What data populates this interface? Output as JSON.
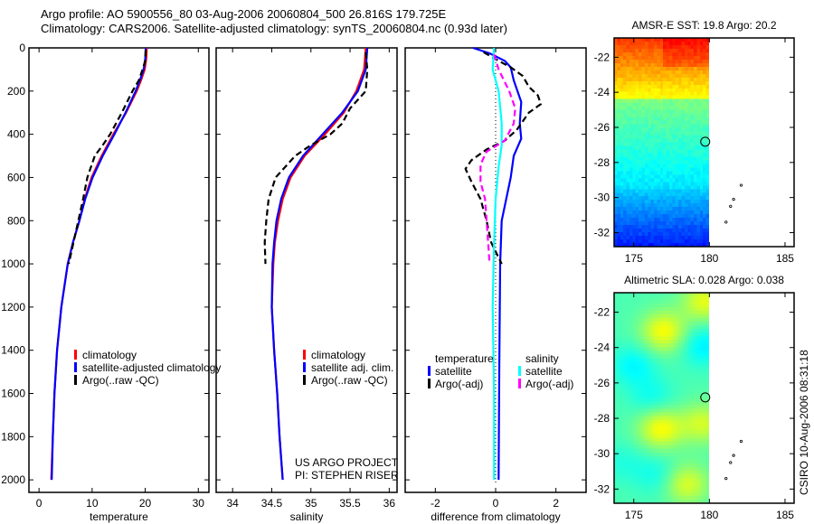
{
  "title": {
    "line1": "Argo profile: AO 5900556_80 03-Aug-2006 20060804_500 26.816S 179.725E",
    "line2": "Climatology: CARS2006. Satellite-adjusted climatology: synTS_20060804.nc (0.93d later)"
  },
  "credits": {
    "project": "US ARGO PROJECT",
    "pi": "PI: STEPHEN RISER",
    "stamp": "CSIRO 10-Aug-2006 08:31:18"
  },
  "colors": {
    "red": "#ff0000",
    "blue": "#0000ff",
    "black": "#000000",
    "cyan": "#00ffff",
    "magenta": "#ff00ff"
  },
  "chart_data": [
    {
      "type": "line",
      "xlabel": "temperature",
      "ylabel": "",
      "xticks": [
        0,
        10,
        20,
        30
      ],
      "yticks": [
        0,
        200,
        400,
        600,
        800,
        1000,
        1200,
        1400,
        1600,
        1800,
        2000
      ],
      "xlim": [
        -1.9,
        32
      ],
      "ylim": [
        2058,
        0
      ],
      "legend": [
        "climatology",
        "satellite-adjusted climatology",
        "Argo(..raw -QC)"
      ],
      "series": [
        {
          "name": "climatology",
          "color": "#ff0000",
          "style": "solid",
          "points": [
            [
              0,
              20.3
            ],
            [
              50,
              20.2
            ],
            [
              100,
              19.9
            ],
            [
              150,
              19.2
            ],
            [
              200,
              18.4
            ],
            [
              300,
              16.4
            ],
            [
              400,
              14.0
            ],
            [
              500,
              11.8
            ],
            [
              600,
              9.9
            ],
            [
              700,
              8.6
            ],
            [
              800,
              7.6
            ],
            [
              900,
              6.4
            ],
            [
              1000,
              5.4
            ],
            [
              1200,
              4.2
            ],
            [
              1400,
              3.4
            ],
            [
              1600,
              2.9
            ],
            [
              1800,
              2.6
            ],
            [
              2000,
              2.3
            ]
          ]
        },
        {
          "name": "satellite-adjusted climatology",
          "color": "#0000ff",
          "style": "solid",
          "points": [
            [
              0,
              20.1
            ],
            [
              50,
              20.0
            ],
            [
              100,
              19.7
            ],
            [
              150,
              19.0
            ],
            [
              200,
              18.2
            ],
            [
              300,
              16.3
            ],
            [
              400,
              14.2
            ],
            [
              500,
              12.0
            ],
            [
              600,
              10.1
            ],
            [
              700,
              8.7
            ],
            [
              800,
              7.6
            ],
            [
              900,
              6.4
            ],
            [
              1000,
              5.4
            ],
            [
              1200,
              4.2
            ],
            [
              1400,
              3.4
            ],
            [
              1600,
              2.9
            ],
            [
              1800,
              2.6
            ],
            [
              2000,
              2.4
            ]
          ]
        },
        {
          "name": "Argo(..raw -QC)",
          "color": "#000000",
          "style": "dash",
          "points": [
            [
              10,
              20.1
            ],
            [
              60,
              20.0
            ],
            [
              100,
              19.5
            ],
            [
              150,
              18.8
            ],
            [
              200,
              17.6
            ],
            [
              300,
              15.6
            ],
            [
              400,
              13.4
            ],
            [
              450,
              12.0
            ],
            [
              500,
              10.5
            ],
            [
              600,
              9.1
            ],
            [
              700,
              8.3
            ],
            [
              800,
              7.4
            ],
            [
              900,
              6.5
            ],
            [
              1000,
              5.6
            ]
          ]
        }
      ]
    },
    {
      "type": "line",
      "xlabel": "salinity",
      "xticks": [
        34,
        34.5,
        35,
        35.5,
        36
      ],
      "yticks": [
        0,
        200,
        400,
        600,
        800,
        1000,
        1200,
        1400,
        1600,
        1800,
        2000
      ],
      "xlim": [
        33.79,
        36.1
      ],
      "ylim": [
        2058,
        0
      ],
      "legend": [
        "climatology",
        "satellite adj. clim.",
        "Argo(..raw -QC)"
      ],
      "series": [
        {
          "name": "climatology",
          "color": "#ff0000",
          "style": "solid",
          "points": [
            [
              0,
              35.7
            ],
            [
              100,
              35.68
            ],
            [
              200,
              35.58
            ],
            [
              300,
              35.42
            ],
            [
              400,
              35.18
            ],
            [
              500,
              34.92
            ],
            [
              600,
              34.74
            ],
            [
              700,
              34.64
            ],
            [
              800,
              34.58
            ],
            [
              900,
              34.54
            ],
            [
              1000,
              34.52
            ],
            [
              1200,
              34.5
            ],
            [
              1400,
              34.53
            ],
            [
              1600,
              34.57
            ],
            [
              1800,
              34.6
            ],
            [
              2000,
              34.64
            ]
          ]
        },
        {
          "name": "satellite adj. clim.",
          "color": "#0000ff",
          "style": "solid",
          "points": [
            [
              0,
              35.72
            ],
            [
              100,
              35.7
            ],
            [
              200,
              35.6
            ],
            [
              300,
              35.4
            ],
            [
              400,
              35.15
            ],
            [
              500,
              34.9
            ],
            [
              600,
              34.72
            ],
            [
              700,
              34.62
            ],
            [
              800,
              34.56
            ],
            [
              900,
              34.53
            ],
            [
              1000,
              34.51
            ],
            [
              1200,
              34.5
            ],
            [
              1400,
              34.53
            ],
            [
              1600,
              34.57
            ],
            [
              1800,
              34.6
            ],
            [
              2000,
              34.64
            ]
          ]
        },
        {
          "name": "Argo(..raw -QC)",
          "color": "#000000",
          "style": "dash",
          "points": [
            [
              20,
              35.7
            ],
            [
              100,
              35.72
            ],
            [
              200,
              35.7
            ],
            [
              280,
              35.5
            ],
            [
              350,
              35.4
            ],
            [
              400,
              35.25
            ],
            [
              450,
              35.0
            ],
            [
              500,
              34.8
            ],
            [
              600,
              34.55
            ],
            [
              700,
              34.46
            ],
            [
              800,
              34.43
            ],
            [
              900,
              34.41
            ],
            [
              1000,
              34.42
            ]
          ]
        }
      ]
    },
    {
      "type": "line",
      "xlabel": "difference from climatology",
      "xticks": [
        -2,
        0,
        2
      ],
      "yticks": [
        0,
        200,
        400,
        600,
        800,
        1000,
        1200,
        1400,
        1600,
        1800,
        2000
      ],
      "xlim": [
        -3,
        3
      ],
      "ylim": [
        2058,
        0
      ],
      "legend_headers": [
        "temperature",
        "salinity"
      ],
      "legend": [
        "satellite",
        "Argo(-adj)",
        "satellite",
        "Argo(-adj)"
      ],
      "series": [
        {
          "name": "temperature satellite",
          "color": "#0000ff",
          "style": "solid",
          "points": [
            [
              0,
              -0.75
            ],
            [
              25,
              -0.2
            ],
            [
              60,
              0.3
            ],
            [
              90,
              0.5
            ],
            [
              150,
              0.6
            ],
            [
              250,
              0.85
            ],
            [
              350,
              0.8
            ],
            [
              420,
              0.85
            ],
            [
              500,
              0.6
            ],
            [
              600,
              0.5
            ],
            [
              700,
              0.35
            ],
            [
              800,
              0.2
            ],
            [
              1000,
              0.15
            ],
            [
              1500,
              0.12
            ],
            [
              2000,
              0.1
            ]
          ]
        },
        {
          "name": "temperature Argo(-adj)",
          "color": "#000000",
          "style": "dash",
          "points": [
            [
              20,
              -0.4
            ],
            [
              60,
              0.1
            ],
            [
              90,
              0.5
            ],
            [
              130,
              0.9
            ],
            [
              180,
              1.1
            ],
            [
              220,
              1.4
            ],
            [
              260,
              1.5
            ],
            [
              300,
              1.1
            ],
            [
              380,
              0.7
            ],
            [
              430,
              0.3
            ],
            [
              470,
              -0.3
            ],
            [
              520,
              -0.8
            ],
            [
              560,
              -1.0
            ],
            [
              620,
              -0.8
            ],
            [
              700,
              -0.5
            ],
            [
              800,
              -0.3
            ],
            [
              900,
              -0.15
            ],
            [
              1000,
              0.2
            ]
          ]
        },
        {
          "name": "salinity satellite",
          "color": "#00ffff",
          "style": "solid",
          "points": [
            [
              0,
              -0.05
            ],
            [
              100,
              -0.1
            ],
            [
              200,
              0.1
            ],
            [
              350,
              0.2
            ],
            [
              450,
              0.2
            ],
            [
              550,
              0.1
            ],
            [
              700,
              0.0
            ],
            [
              900,
              -0.05
            ],
            [
              1200,
              -0.1
            ],
            [
              1600,
              -0.05
            ],
            [
              2000,
              -0.05
            ]
          ]
        },
        {
          "name": "salinity Argo(-adj)",
          "color": "#ff00ff",
          "style": "dash",
          "points": [
            [
              30,
              -0.05
            ],
            [
              100,
              0.1
            ],
            [
              200,
              0.45
            ],
            [
              280,
              0.65
            ],
            [
              350,
              0.6
            ],
            [
              430,
              0.3
            ],
            [
              480,
              -0.3
            ],
            [
              540,
              -0.5
            ],
            [
              620,
              -0.5
            ],
            [
              700,
              -0.35
            ],
            [
              800,
              -0.3
            ],
            [
              900,
              -0.25
            ],
            [
              1000,
              -0.2
            ]
          ]
        }
      ]
    },
    {
      "type": "heatmap",
      "title": "AMSR-E SST: 19.8 Argo: 20.2",
      "xticks": [
        175,
        180,
        185
      ],
      "yticks": [
        -22,
        -24,
        -26,
        -28,
        -30,
        -32
      ],
      "xlim": [
        173.7,
        185.6
      ],
      "ylim": [
        -32.8,
        -20.9
      ],
      "profile_location": [
        179.725,
        -26.816
      ]
    },
    {
      "type": "heatmap",
      "title": "Altimetric SLA: 0.028 Argo: 0.038",
      "xticks": [
        175,
        180,
        185
      ],
      "yticks": [
        -22,
        -24,
        -26,
        -28,
        -30,
        -32
      ],
      "xlim": [
        173.7,
        185.6
      ],
      "ylim": [
        -32.8,
        -20.9
      ],
      "profile_location": [
        179.725,
        -26.816
      ]
    }
  ]
}
